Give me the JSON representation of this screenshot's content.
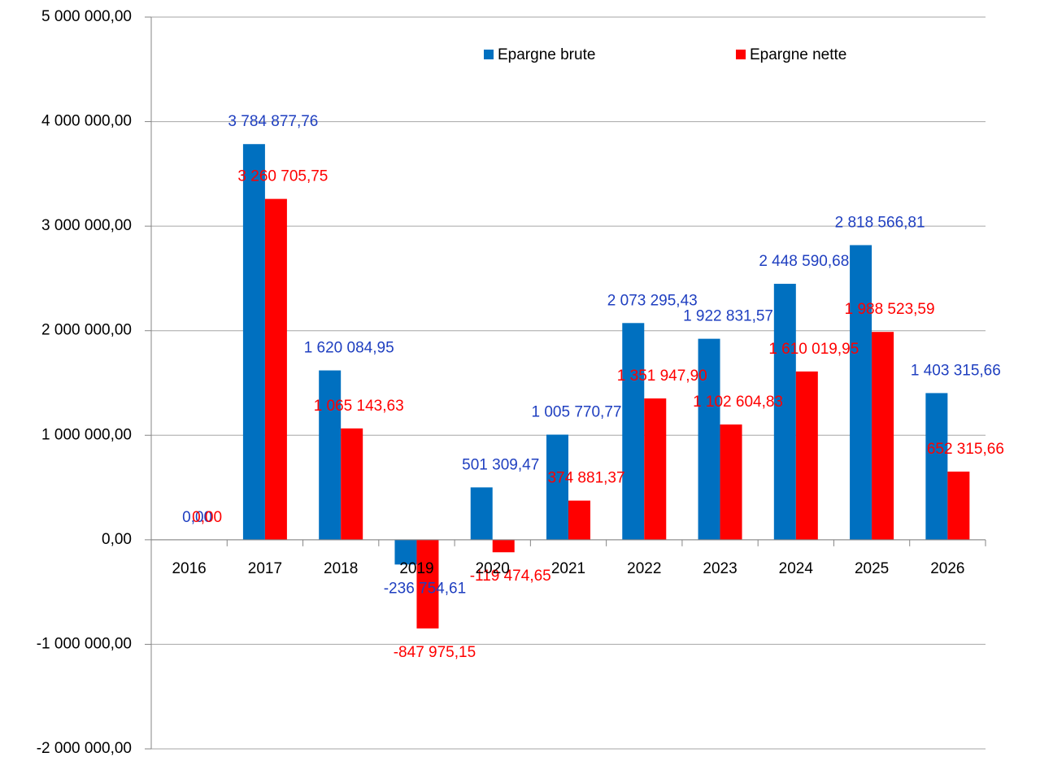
{
  "chart_data": {
    "type": "bar",
    "categories": [
      "2016",
      "2017",
      "2018",
      "2019",
      "2020",
      "2021",
      "2022",
      "2023",
      "2024",
      "2025",
      "2026"
    ],
    "series": [
      {
        "name": "Epargne brute",
        "color": "#0070c0",
        "label_color": "#1f3fc0",
        "values": [
          0,
          3784877.76,
          1620084.95,
          -236754.61,
          501309.47,
          1005770.77,
          2073295.43,
          1922831.57,
          2448590.68,
          2818566.81,
          1403315.66
        ],
        "value_labels": [
          "0,00",
          "3 784 877,76",
          "1 620 084,95",
          "-236 754,61",
          "501 309,47",
          "1 005 770,77",
          "2 073 295,43",
          "1 922 831,57",
          "2 448 590,68",
          "2 818 566,81",
          "1 403 315,66"
        ]
      },
      {
        "name": "Epargne nette",
        "color": "#ff0000",
        "label_color": "#ff0000",
        "values": [
          0,
          3260705.75,
          1065143.63,
          -847975.15,
          -119474.65,
          374881.37,
          1351947.9,
          1102604.83,
          1610019.95,
          1988523.59,
          652315.66
        ],
        "value_labels": [
          "0,00",
          "3 260 705,75",
          "1 065 143,63",
          "-847 975,15",
          "-119 474,65",
          "374 881,37",
          "1 351 947,90",
          "1 102 604,83",
          "1 610 019,95",
          "1 988 523,59",
          "652 315,66"
        ]
      }
    ],
    "ylim": [
      -2000000,
      5000000
    ],
    "yticks": [
      {
        "value": -2000000,
        "label": "-2 000 000,00"
      },
      {
        "value": -1000000,
        "label": "-1 000 000,00"
      },
      {
        "value": 0,
        "label": "0,00"
      },
      {
        "value": 1000000,
        "label": "1 000 000,00"
      },
      {
        "value": 2000000,
        "label": "2 000 000,00"
      },
      {
        "value": 3000000,
        "label": "3 000 000,00"
      },
      {
        "value": 4000000,
        "label": "4 000 000,00"
      },
      {
        "value": 5000000,
        "label": "5 000 000,00"
      }
    ],
    "grid": true,
    "legend": "top"
  }
}
